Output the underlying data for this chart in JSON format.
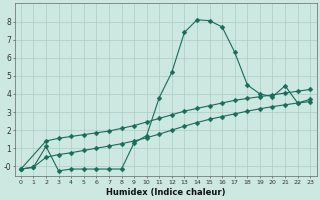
{
  "xlabel": "Humidex (Indice chaleur)",
  "xlim": [
    -0.5,
    23.5
  ],
  "ylim": [
    -0.55,
    9.0
  ],
  "xticks": [
    0,
    1,
    2,
    3,
    4,
    5,
    6,
    7,
    8,
    9,
    10,
    11,
    12,
    13,
    14,
    15,
    16,
    17,
    18,
    19,
    20,
    21,
    22,
    23
  ],
  "yticks": [
    0,
    1,
    2,
    3,
    4,
    5,
    6,
    7,
    8
  ],
  "ytick_labels": [
    "-0",
    "1",
    "2",
    "3",
    "4",
    "5",
    "6",
    "7",
    "8"
  ],
  "bg_color": "#cce8e0",
  "line_color": "#1a6b5a",
  "grid_color": "#aaccc4",
  "curve1_x": [
    0,
    1,
    2,
    3,
    4,
    5,
    6,
    7,
    8,
    9,
    10,
    11,
    12,
    13,
    14,
    15,
    16,
    17,
    18,
    19,
    20,
    21,
    22,
    23
  ],
  "curve1_y": [
    -0.15,
    -0.05,
    1.1,
    -0.25,
    -0.15,
    -0.15,
    -0.15,
    -0.15,
    -0.15,
    1.3,
    1.7,
    3.8,
    5.2,
    7.4,
    8.1,
    8.05,
    7.7,
    6.3,
    4.5,
    4.0,
    3.85,
    4.45,
    3.5,
    3.7
  ],
  "curve2_x": [
    0,
    2,
    3,
    4,
    5,
    6,
    7,
    8,
    9,
    10,
    11,
    12,
    13,
    14,
    15,
    16,
    17,
    18,
    19,
    20,
    21,
    22,
    23
  ],
  "curve2_y": [
    -0.15,
    1.4,
    1.55,
    1.65,
    1.75,
    1.85,
    1.95,
    2.1,
    2.25,
    2.45,
    2.65,
    2.85,
    3.05,
    3.2,
    3.35,
    3.5,
    3.65,
    3.75,
    3.85,
    3.95,
    4.05,
    4.15,
    4.25
  ],
  "curve3_x": [
    0,
    1,
    2,
    3,
    4,
    5,
    6,
    7,
    8,
    9,
    10,
    11,
    12,
    13,
    14,
    15,
    16,
    17,
    18,
    19,
    20,
    21,
    22,
    23
  ],
  "curve3_y": [
    -0.15,
    -0.05,
    0.5,
    0.65,
    0.75,
    0.88,
    1.0,
    1.12,
    1.25,
    1.4,
    1.58,
    1.78,
    2.0,
    2.22,
    2.42,
    2.6,
    2.75,
    2.9,
    3.05,
    3.18,
    3.3,
    3.4,
    3.5,
    3.58
  ]
}
